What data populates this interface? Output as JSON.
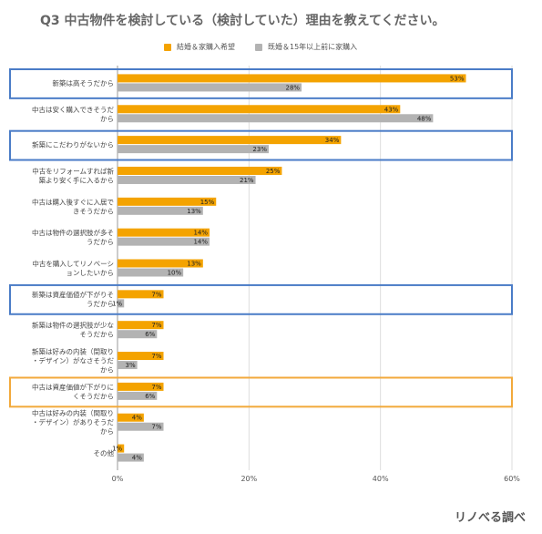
{
  "title": "Q3 中古物件を検討している（検討していた）理由を教えてください。",
  "credit": "リノべる調べ",
  "colors": {
    "series1": "#F4A300",
    "series2": "#B3B3B3",
    "highlight_blue": "#4A7CC7",
    "highlight_orange": "#F2A93B"
  },
  "chart_data": {
    "type": "bar",
    "orientation": "horizontal",
    "categories": [
      "新築は高そうだから",
      "中古は安く購入できそうだから",
      "新築にこだわりがないから",
      "中古をリフォームすれば新築より安く手に入るから",
      "中古は購入後すぐに入居できそうだから",
      "中古は物件の選択肢が多そうだから",
      "中古を購入してリノベーションしたいから",
      "新築は資産価値が下がりそうだから",
      "新築は物件の選択肢が少なそうだから",
      "新築は好みの内装（間取り・デザイン）がなさそうだから",
      "中古は資産価値が下がりにくそうだから",
      "中古は好みの内装（間取り・デザイン）がありそうだから",
      "その他"
    ],
    "series": [
      {
        "name": "結婚＆家購入希望",
        "values": [
          53,
          43,
          34,
          25,
          15,
          14,
          13,
          7,
          7,
          7,
          7,
          4,
          1
        ]
      },
      {
        "name": "既婚＆15年以上前に家購入",
        "values": [
          28,
          48,
          23,
          21,
          13,
          14,
          10,
          1,
          6,
          3,
          6,
          7,
          4
        ]
      }
    ],
    "xlim": [
      0,
      60
    ],
    "xticks": [
      "0%",
      "20%",
      "40%",
      "60%"
    ],
    "value_suffix": "%",
    "grid": true,
    "legend": "top",
    "highlighted_categories": [
      {
        "index": 0,
        "color": "blue"
      },
      {
        "index": 2,
        "color": "blue"
      },
      {
        "index": 7,
        "color": "blue"
      },
      {
        "index": 10,
        "color": "orange"
      }
    ]
  },
  "display_labels": [
    [
      "新築は高そうだから"
    ],
    [
      "中古は安く購入できそうだ",
      "から"
    ],
    [
      "新築にこだわりがないから"
    ],
    [
      "中古をリフォームすれば新",
      "築より安く手に入るから"
    ],
    [
      "中古は購入後すぐに入居で",
      "きそうだから"
    ],
    [
      "中古は物件の選択肢が多そ",
      "うだから"
    ],
    [
      "中古を購入してリノベーシ",
      "ョンしたいから"
    ],
    [
      "新築は資産価値が下がりそ",
      "うだから"
    ],
    [
      "新築は物件の選択肢が少な",
      "そうだから"
    ],
    [
      "新築は好みの内装（間取り",
      "・デザイン）がなさそうだ",
      "から"
    ],
    [
      "中古は資産価値が下がりに",
      "くそうだから"
    ],
    [
      "中古は好みの内装（間取り",
      "・デザイン）がありそうだ",
      "から"
    ],
    [
      "その他"
    ]
  ]
}
